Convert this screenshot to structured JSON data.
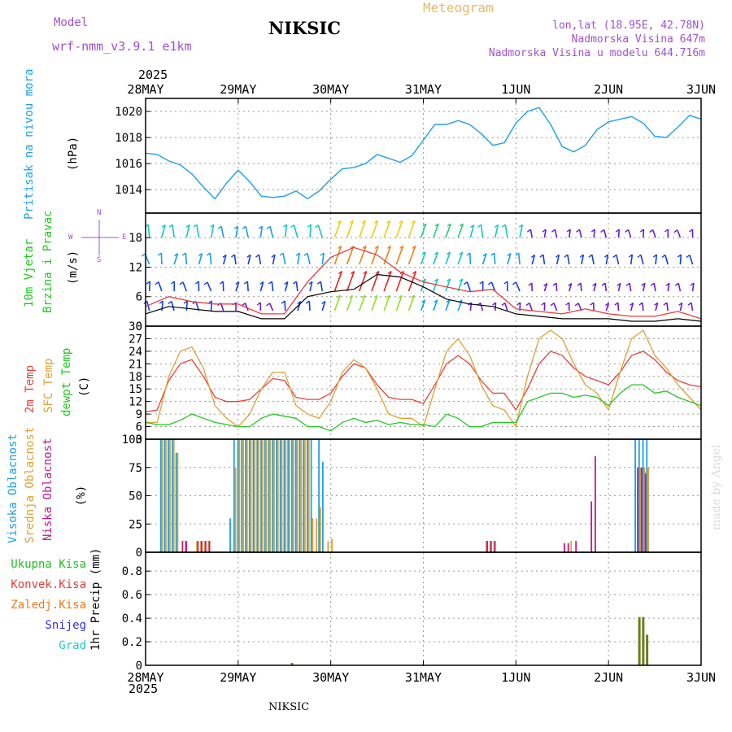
{
  "header": {
    "model_label": "Model",
    "model_name": "wrf-nmm_v3.9.1 e1km",
    "title": "NIKSIC",
    "product": "Meteogram",
    "lonlat": "lon,lat (18.95E, 42.78N)",
    "elevation": "Nadmorska Visina 647m",
    "model_elevation": "Nadmorska Visina u modelu 644.716m",
    "year": "2025",
    "footer": "NIKSIC",
    "credit": "made by Angel"
  },
  "colors": {
    "pressure": "#1ea0e6",
    "wind_speed": "#000000",
    "gust": "#e83c3c",
    "t2m": "#e84040",
    "sfc": "#e0a030",
    "dew": "#20c820",
    "high_cloud": "#1ea0e6",
    "mid_cloud": "#e0a030",
    "low_cloud": "#c01890",
    "precip": "#6e7d1e"
  },
  "chart_data": [
    {
      "type": "line",
      "id": "pressure",
      "ylabel": [
        "Pritisak na nivou mora",
        "(hPa)"
      ],
      "x_ticks": [
        "28MAY",
        "29MAY",
        "30MAY",
        "31MAY",
        "1JUN",
        "2JUN",
        "3JUN"
      ],
      "y_ticks": [
        1014,
        1016,
        1018,
        1020
      ],
      "ylim": [
        1012.2,
        1021
      ],
      "grid": true,
      "series": [
        {
          "hours": [
            0,
            3,
            6,
            9,
            12,
            15,
            18,
            21,
            24,
            27,
            30,
            33,
            36,
            39,
            42,
            45,
            48,
            51,
            54,
            57,
            60,
            63,
            66,
            69,
            72,
            75,
            78,
            81,
            84,
            87,
            90,
            93,
            96,
            99,
            102,
            105,
            108,
            111,
            114,
            117,
            120,
            123,
            126,
            129,
            132,
            135,
            138,
            141,
            144
          ],
          "values": [
            1016.8,
            1016.7,
            1016.2,
            1015.9,
            1015.2,
            1014.2,
            1013.3,
            1014.5,
            1015.5,
            1014.6,
            1013.5,
            1013.4,
            1013.5,
            1013.9,
            1013.3,
            1013.9,
            1014.8,
            1015.6,
            1015.7,
            1016.0,
            1016.7,
            1016.4,
            1016.1,
            1016.6,
            1017.8,
            1019.0,
            1019.0,
            1019.3,
            1019.0,
            1018.3,
            1017.4,
            1017.6,
            1019.1,
            1020.0,
            1020.3,
            1019.0,
            1017.3,
            1016.9,
            1017.4,
            1018.6,
            1019.2,
            1019.4,
            1019.6,
            1019.1,
            1018.1,
            1018.0,
            1018.8,
            1019.7,
            1019.4
          ]
        }
      ]
    },
    {
      "type": "line",
      "id": "wind",
      "ylabel": [
        "10m Vjetar",
        "Brzina i Pravac",
        "(m/s)"
      ],
      "y_ticks": [
        0,
        6,
        12,
        18
      ],
      "ylim": [
        0,
        23
      ],
      "grid": true,
      "direction_key": [
        "N",
        "E",
        "S",
        "W"
      ],
      "series": [
        {
          "name": "speed",
          "hours": [
            0,
            6,
            12,
            18,
            24,
            30,
            36,
            42,
            48,
            54,
            60,
            66,
            72,
            78,
            84,
            90,
            96,
            102,
            108,
            114,
            120,
            126,
            132,
            138,
            144
          ],
          "values": [
            2.5,
            4.0,
            3.5,
            3.0,
            3.0,
            1.5,
            1.5,
            6.0,
            7.0,
            7.5,
            10.5,
            10.0,
            8.0,
            5.5,
            4.5,
            4.0,
            2.5,
            2.0,
            1.5,
            1.5,
            1.5,
            1.0,
            1.0,
            1.5,
            1.0
          ]
        },
        {
          "name": "gust",
          "hours": [
            0,
            6,
            12,
            18,
            24,
            30,
            36,
            42,
            48,
            54,
            60,
            66,
            72,
            78,
            84,
            90,
            96,
            102,
            108,
            114,
            120,
            126,
            132,
            138,
            144
          ],
          "values": [
            4.0,
            6.0,
            5.0,
            4.5,
            4.5,
            2.5,
            2.5,
            9.0,
            14.0,
            16.0,
            14.5,
            11.0,
            9.0,
            8.0,
            7.0,
            7.5,
            3.5,
            3.0,
            2.5,
            3.5,
            2.5,
            2.0,
            2.0,
            3.0,
            1.5
          ]
        }
      ]
    },
    {
      "type": "line",
      "id": "temperature",
      "ylabel": [
        "2m Temp",
        "SFC Temp",
        "dewpt Temp",
        "(C)"
      ],
      "y_ticks": [
        3,
        6,
        9,
        12,
        15,
        18,
        21,
        24,
        27,
        30
      ],
      "ylim": [
        3,
        30
      ],
      "grid": true,
      "series": [
        {
          "name": "2m Temp",
          "hours": [
            0,
            3,
            6,
            9,
            12,
            15,
            18,
            21,
            24,
            27,
            30,
            33,
            36,
            39,
            42,
            45,
            48,
            51,
            54,
            57,
            60,
            63,
            66,
            69,
            72,
            75,
            78,
            81,
            84,
            87,
            90,
            93,
            96,
            99,
            102,
            105,
            108,
            111,
            114,
            117,
            120,
            123,
            126,
            129,
            132,
            135,
            138,
            141,
            144
          ],
          "values": [
            9.5,
            10,
            17,
            21,
            22,
            18,
            13,
            12,
            12,
            12.5,
            15,
            17.5,
            17,
            13,
            12.5,
            12.5,
            14,
            18,
            21,
            20,
            16,
            13,
            12.5,
            12.5,
            11.5,
            16,
            21,
            23,
            21,
            17,
            14,
            14,
            10,
            15,
            21,
            24,
            23,
            20,
            18,
            17,
            16,
            19,
            23,
            24,
            22,
            19,
            17,
            16,
            15.5
          ]
        },
        {
          "name": "SFC Temp",
          "hours": [
            0,
            3,
            6,
            9,
            12,
            15,
            18,
            21,
            24,
            27,
            30,
            33,
            36,
            39,
            42,
            45,
            48,
            51,
            54,
            57,
            60,
            63,
            66,
            69,
            72,
            75,
            78,
            81,
            84,
            87,
            90,
            93,
            96,
            99,
            102,
            105,
            108,
            111,
            114,
            117,
            120,
            123,
            126,
            129,
            132,
            135,
            138,
            141,
            144
          ],
          "values": [
            7,
            7,
            18,
            24,
            25,
            20,
            11,
            8,
            6,
            9,
            15,
            19,
            19,
            11,
            9,
            8,
            12,
            19,
            22,
            20,
            15,
            9,
            8,
            8,
            6,
            15,
            24,
            27,
            23,
            16,
            11,
            10,
            6,
            18,
            27,
            29,
            27,
            21,
            16,
            14,
            10,
            19,
            27,
            29,
            23,
            20,
            16,
            13,
            10
          ]
        },
        {
          "name": "dewpt Temp",
          "hours": [
            0,
            3,
            6,
            9,
            12,
            15,
            18,
            21,
            24,
            27,
            30,
            33,
            36,
            39,
            42,
            45,
            48,
            51,
            54,
            57,
            60,
            63,
            66,
            69,
            72,
            75,
            78,
            81,
            84,
            87,
            90,
            93,
            96,
            99,
            102,
            105,
            108,
            111,
            114,
            117,
            120,
            123,
            126,
            129,
            132,
            135,
            138,
            141,
            144
          ],
          "values": [
            7,
            6.5,
            6.5,
            7.5,
            9,
            8,
            7,
            6.5,
            6,
            6,
            8,
            9,
            8.5,
            8,
            6,
            6,
            5,
            7,
            8,
            7,
            7.5,
            6.5,
            7,
            6.5,
            6.5,
            6,
            9,
            8,
            6,
            6,
            7,
            7,
            7,
            12,
            13,
            14,
            14,
            13,
            13.5,
            13,
            11,
            14,
            16,
            16,
            14,
            14.5,
            13,
            12,
            11
          ]
        }
      ]
    },
    {
      "type": "bar",
      "id": "cloud",
      "ylabel": [
        "Visoka Oblacnost",
        "Srednja Oblacnost",
        "Niska Oblacnost",
        "(%)"
      ],
      "y_ticks": [
        0,
        25,
        50,
        75,
        100
      ],
      "ylim": [
        0,
        100
      ],
      "grid": true,
      "series": [
        {
          "name": "Visoka Oblacnost",
          "hours": [
            4,
            5,
            6,
            7,
            8,
            22,
            23,
            24,
            25,
            26,
            27,
            28,
            29,
            30,
            31,
            32,
            33,
            34,
            35,
            36,
            37,
            38,
            39,
            40,
            41,
            42,
            43,
            45,
            46,
            127,
            128,
            129,
            130
          ],
          "values": [
            100,
            100,
            100,
            100,
            88,
            30,
            100,
            100,
            100,
            100,
            100,
            100,
            100,
            100,
            100,
            100,
            100,
            100,
            100,
            100,
            100,
            100,
            100,
            100,
            100,
            100,
            100,
            100,
            80,
            100,
            100,
            100,
            100
          ]
        },
        {
          "name": "Srednja Oblacnost",
          "hours": [
            4,
            5,
            6,
            7,
            8,
            10,
            13,
            14,
            15,
            16,
            23,
            24,
            25,
            26,
            27,
            28,
            29,
            30,
            31,
            32,
            33,
            34,
            35,
            36,
            37,
            38,
            39,
            40,
            41,
            42,
            43,
            44,
            45,
            47,
            48,
            88,
            89,
            90,
            110,
            128,
            129,
            130
          ],
          "values": [
            100,
            100,
            100,
            100,
            88,
            10,
            10,
            10,
            10,
            10,
            75,
            100,
            100,
            100,
            100,
            100,
            100,
            100,
            100,
            100,
            100,
            100,
            100,
            100,
            100,
            100,
            100,
            100,
            100,
            100,
            30,
            30,
            40,
            10,
            12,
            10,
            10,
            10,
            10,
            75,
            75,
            75
          ]
        },
        {
          "name": "Niska Oblacnost",
          "hours": [
            9,
            10,
            13,
            14,
            15,
            16,
            88,
            89,
            90,
            108,
            109,
            111,
            115,
            116,
            127,
            128,
            129
          ],
          "values": [
            10,
            10,
            10,
            10,
            10,
            10,
            10,
            10,
            10,
            8,
            8,
            10,
            45,
            85,
            75,
            75,
            70
          ]
        }
      ]
    },
    {
      "type": "bar",
      "id": "precip",
      "ylabel": [
        "1hr Precip (mm)"
      ],
      "legend": [
        "Ukupna Kisa",
        "Konvek.Kisa",
        "Zaledj.Kisa",
        "Snijeg",
        "Grad"
      ],
      "legend_colors": [
        "#20c020",
        "#e83c3c",
        "#f07820",
        "#3030e0",
        "#20c8c8"
      ],
      "y_ticks": [
        0,
        0.2,
        0.4,
        0.6,
        0.8
      ],
      "ylim": [
        0,
        0.96
      ],
      "grid": true,
      "series": [
        {
          "name": "1hr Precip",
          "hours": [
            38,
            128,
            129,
            130
          ],
          "values": [
            0.02,
            0.41,
            0.41,
            0.26
          ]
        }
      ]
    }
  ]
}
